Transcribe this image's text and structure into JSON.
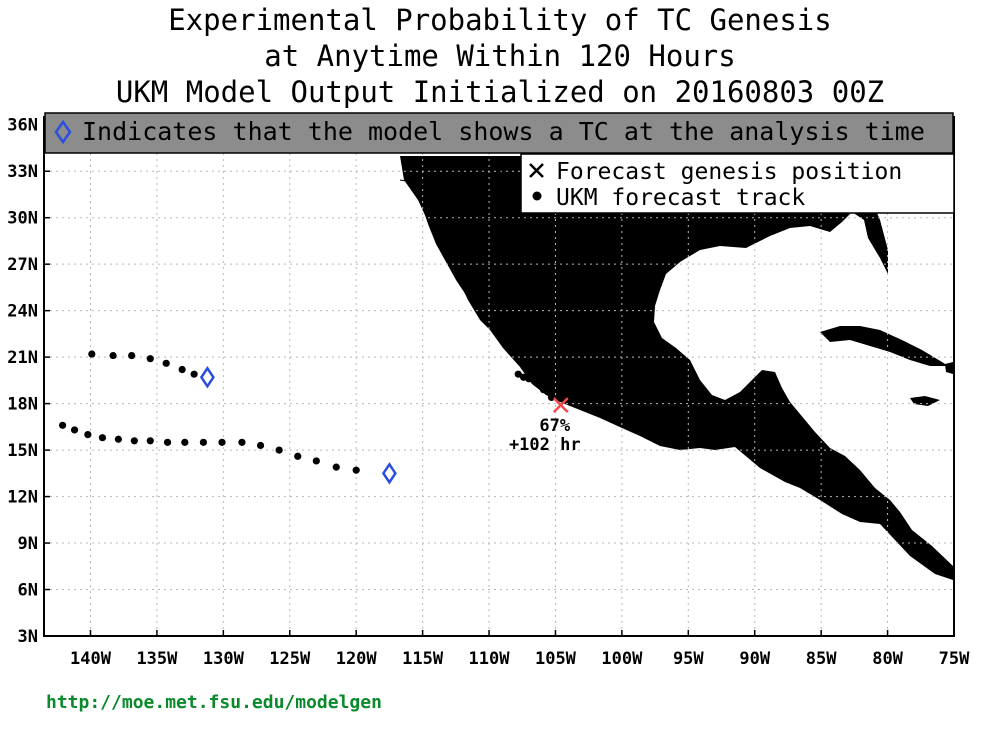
{
  "title": {
    "line1": "Experimental Probability of TC Genesis",
    "line2": "at Anytime Within 120 Hours",
    "line3": "UKM Model Output Initialized on 20160803 00Z"
  },
  "banner": {
    "icon": "diamond-icon",
    "text": "Indicates that the model shows a TC at the analysis time"
  },
  "legend": {
    "genesis_label": "Forecast genesis position",
    "track_label": "UKM forecast track"
  },
  "axes": {
    "lon_ticks": [
      {
        "lon": -140,
        "label": "140W"
      },
      {
        "lon": -135,
        "label": "135W"
      },
      {
        "lon": -130,
        "label": "130W"
      },
      {
        "lon": -125,
        "label": "125W"
      },
      {
        "lon": -120,
        "label": "120W"
      },
      {
        "lon": -115,
        "label": "115W"
      },
      {
        "lon": -110,
        "label": "110W"
      },
      {
        "lon": -105,
        "label": "105W"
      },
      {
        "lon": -100,
        "label": "100W"
      },
      {
        "lon": -95,
        "label": "95W"
      },
      {
        "lon": -90,
        "label": "90W"
      },
      {
        "lon": -85,
        "label": "85W"
      },
      {
        "lon": -80,
        "label": "80W"
      },
      {
        "lon": -75,
        "label": "75W"
      }
    ],
    "lat_ticks": [
      {
        "lat": 3,
        "label": "3N"
      },
      {
        "lat": 6,
        "label": "6N"
      },
      {
        "lat": 9,
        "label": "9N"
      },
      {
        "lat": 12,
        "label": "12N"
      },
      {
        "lat": 15,
        "label": "15N"
      },
      {
        "lat": 18,
        "label": "18N"
      },
      {
        "lat": 21,
        "label": "21N"
      },
      {
        "lat": 24,
        "label": "24N"
      },
      {
        "lat": 27,
        "label": "27N"
      },
      {
        "lat": 30,
        "label": "30N"
      },
      {
        "lat": 33,
        "label": "33N"
      },
      {
        "lat": 36,
        "label": "36N"
      }
    ],
    "lon_range": [
      -143.5,
      -75
    ],
    "lat_range": [
      3,
      36.5
    ]
  },
  "tracks": [
    {
      "analysis_position": {
        "lon": -131.2,
        "lat": 19.7
      },
      "points": [
        {
          "lon": -139.9,
          "lat": 21.2
        },
        {
          "lon": -138.3,
          "lat": 21.1
        },
        {
          "lon": -136.9,
          "lat": 21.1
        },
        {
          "lon": -135.5,
          "lat": 20.9
        },
        {
          "lon": -134.3,
          "lat": 20.6
        },
        {
          "lon": -133.1,
          "lat": 20.2
        },
        {
          "lon": -132.2,
          "lat": 19.9
        }
      ]
    },
    {
      "analysis_position": {
        "lon": -117.5,
        "lat": 13.5
      },
      "points": [
        {
          "lon": -142.1,
          "lat": 16.6
        },
        {
          "lon": -141.2,
          "lat": 16.3
        },
        {
          "lon": -140.2,
          "lat": 16.0
        },
        {
          "lon": -139.1,
          "lat": 15.8
        },
        {
          "lon": -137.9,
          "lat": 15.7
        },
        {
          "lon": -136.7,
          "lat": 15.6
        },
        {
          "lon": -135.5,
          "lat": 15.6
        },
        {
          "lon": -134.2,
          "lat": 15.5
        },
        {
          "lon": -132.9,
          "lat": 15.5
        },
        {
          "lon": -131.5,
          "lat": 15.5
        },
        {
          "lon": -130.1,
          "lat": 15.5
        },
        {
          "lon": -128.6,
          "lat": 15.5
        },
        {
          "lon": -127.2,
          "lat": 15.3
        },
        {
          "lon": -125.8,
          "lat": 15.0
        },
        {
          "lon": -124.4,
          "lat": 14.6
        },
        {
          "lon": -123.0,
          "lat": 14.3
        },
        {
          "lon": -121.5,
          "lat": 13.9
        },
        {
          "lon": -120.0,
          "lat": 13.7
        }
      ]
    },
    {
      "points": [
        {
          "lon": -107.8,
          "lat": 19.9
        },
        {
          "lon": -107.4,
          "lat": 19.7
        },
        {
          "lon": -107.0,
          "lat": 19.6
        },
        {
          "lon": -106.5,
          "lat": 19.4
        },
        {
          "lon": -105.9,
          "lat": 18.9
        },
        {
          "lon": -105.3,
          "lat": 18.4
        }
      ]
    }
  ],
  "genesis": {
    "lon": -104.6,
    "lat": 17.9,
    "probability": "67%",
    "lead_time": "+102 hr"
  },
  "colors": {
    "land": "#b5683f",
    "banner_bg": "#8c8c8c",
    "diamond": "#2a4fe0",
    "genesis_x": "#f04a4a",
    "url": "#0a8a2a"
  },
  "footer": {
    "url": "http://moe.met.fsu.edu/modelgen"
  }
}
